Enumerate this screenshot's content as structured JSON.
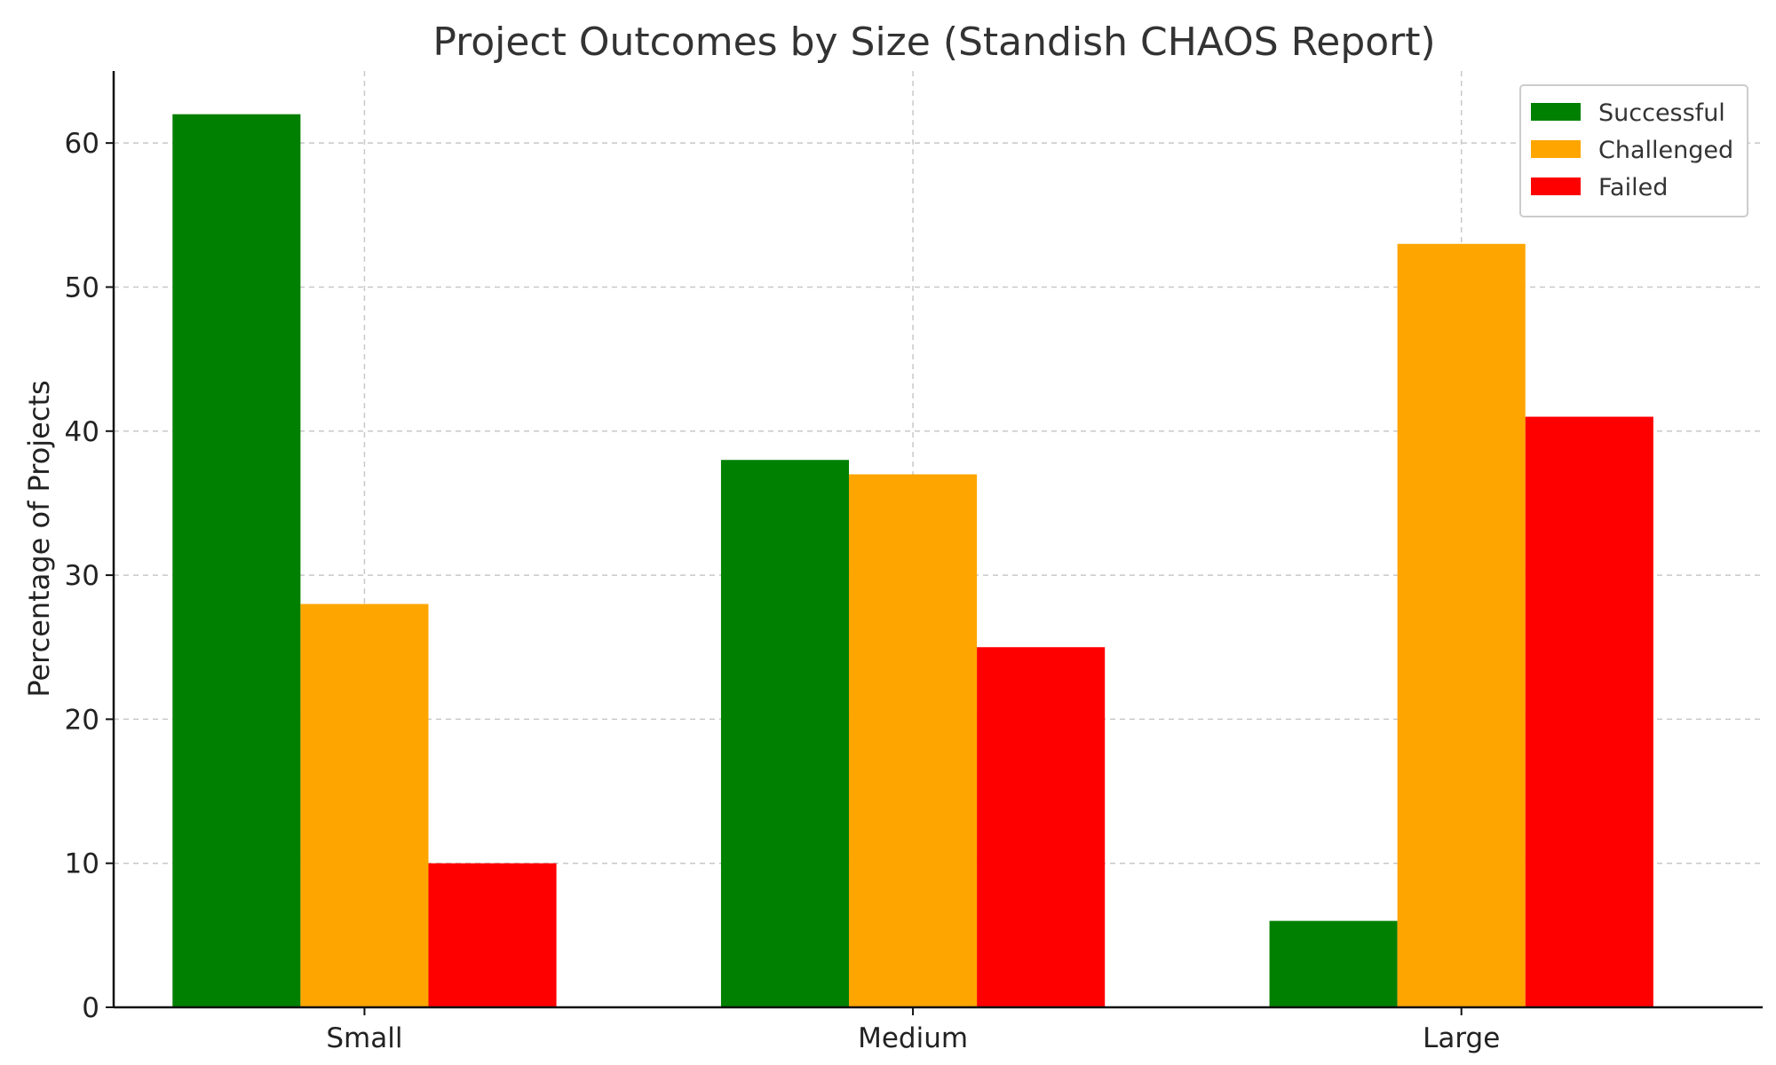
{
  "chart_data": {
    "type": "bar",
    "title": "Project Outcomes by Size (Standish CHAOS Report)",
    "xlabel": "",
    "ylabel": "Percentage of Projects",
    "categories": [
      "Small",
      "Medium",
      "Large"
    ],
    "series": [
      {
        "name": "Successful",
        "color": "#008000",
        "values": [
          62,
          38,
          6
        ]
      },
      {
        "name": "Challenged",
        "color": "#ffa500",
        "values": [
          28,
          37,
          53
        ]
      },
      {
        "name": "Failed",
        "color": "#ff0000",
        "values": [
          10,
          25,
          41
        ]
      }
    ],
    "ylim": [
      0,
      65
    ],
    "yticks": [
      0,
      10,
      20,
      30,
      40,
      50,
      60
    ],
    "grid": true,
    "legend_position": "top-right"
  }
}
